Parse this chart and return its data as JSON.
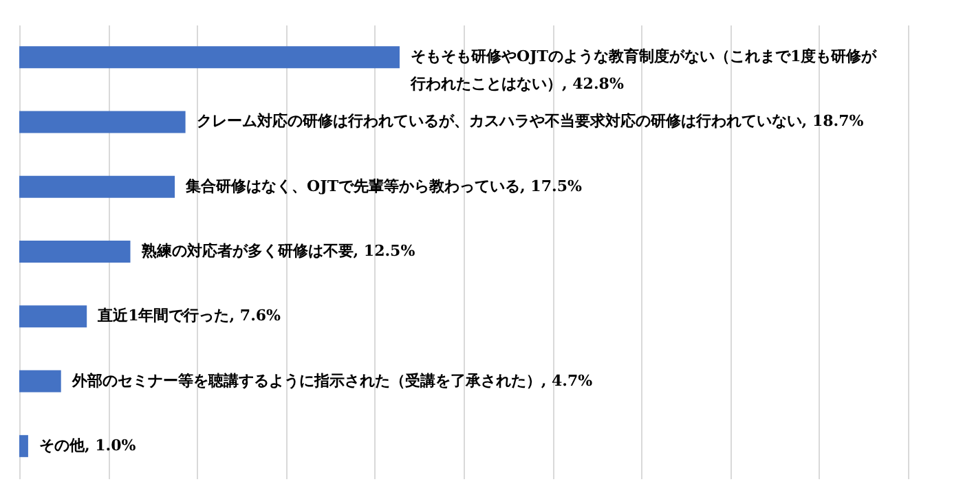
{
  "chart_data": {
    "type": "bar",
    "orientation": "horizontal",
    "categories": [
      null,
      null,
      null,
      null,
      null,
      null,
      null
    ],
    "values": [
      42.8,
      18.7,
      17.5,
      12.5,
      7.6,
      4.7,
      1.0
    ],
    "value_labels": [
      "そもそも研修やOJTのような教育制度がない（これまで1度も研修が行われたことはない）, 42.8%",
      "クレーム対応の研修は行われているが、カスハラや不当要求対応の研修は行われていない, 18.7%",
      "集合研修はなく、OJTで先輩等から教わっている, 17.5%",
      "熟練の対応者が多く研修は不要, 12.5%",
      "直近1年間で行った, 7.6%",
      "外部のセミナー等を聴講するように指示された（受講を了承された）, 4.7%",
      "その他, 1.0%"
    ],
    "color": "#4472c4",
    "xlim": [
      0,
      100
    ],
    "xticks": [
      {
        "value": 0,
        "label": null
      },
      {
        "value": 10,
        "label": null
      },
      {
        "value": 20,
        "label": null
      },
      {
        "value": 30,
        "label": null
      },
      {
        "value": 40,
        "label": null
      },
      {
        "value": 50,
        "label": null
      },
      {
        "value": 60,
        "label": null
      },
      {
        "value": 70,
        "label": null
      },
      {
        "value": 80,
        "label": null
      },
      {
        "value": 90,
        "label": null
      },
      {
        "value": 100,
        "label": null
      }
    ],
    "grid": "x",
    "tick_labels": false
  }
}
